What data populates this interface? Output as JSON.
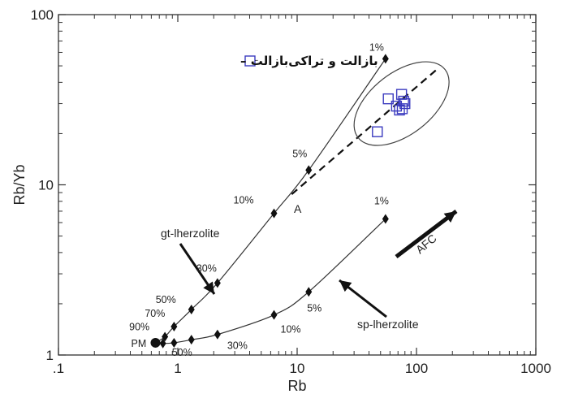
{
  "chart_data": {
    "type": "scatter",
    "xlabel": "Rb",
    "ylabel": "Rb/Yb",
    "xscale": "log",
    "yscale": "log",
    "xlim": [
      0.1,
      1000
    ],
    "ylim": [
      1,
      100
    ],
    "x_ticks": [
      0.1,
      1,
      10,
      100,
      1000
    ],
    "x_tick_labels": [
      ".1",
      "1",
      "10",
      "100",
      "1000"
    ],
    "y_ticks": [
      1,
      10,
      100
    ],
    "y_tick_labels": [
      "1",
      "10",
      "100"
    ],
    "legend": {
      "label": "بازالت و تراکی‌بازالت",
      "marker": "open-square",
      "color": "#3b3bbf",
      "placement": "top-left"
    },
    "pm_point": {
      "label": "PM",
      "x": 0.65,
      "y": 1.18
    },
    "series": [
      {
        "name": "gt-lherzolite",
        "marker": "diamond",
        "points": [
          {
            "x": 0.78,
            "y": 1.28,
            "label": "90%"
          },
          {
            "x": 0.93,
            "y": 1.47,
            "label": "70%"
          },
          {
            "x": 1.3,
            "y": 1.85,
            "label": "50%"
          },
          {
            "x": 2.15,
            "y": 2.65,
            "label": "30%"
          },
          {
            "x": 6.4,
            "y": 6.8,
            "label": "10%"
          },
          {
            "x": 12.5,
            "y": 12.2,
            "label": "5%"
          },
          {
            "x": 55,
            "y": 55,
            "label": "1%"
          }
        ]
      },
      {
        "name": "sp-lherzolite",
        "marker": "diamond",
        "points": [
          {
            "x": 0.75,
            "y": 1.17,
            "label": ""
          },
          {
            "x": 0.93,
            "y": 1.18,
            "label": ""
          },
          {
            "x": 1.3,
            "y": 1.23,
            "label": "50%"
          },
          {
            "x": 2.15,
            "y": 1.32,
            "label": "30%"
          },
          {
            "x": 6.4,
            "y": 1.72,
            "label": "10%"
          },
          {
            "x": 12.5,
            "y": 2.35,
            "label": "5%"
          },
          {
            "x": 55,
            "y": 6.3,
            "label": "1%"
          }
        ]
      },
      {
        "name": "بازالت و تراکی‌بازالت",
        "marker": "open-square",
        "points": [
          {
            "x": 47,
            "y": 20.5
          },
          {
            "x": 58,
            "y": 32
          },
          {
            "x": 68,
            "y": 29
          },
          {
            "x": 72,
            "y": 27.5
          },
          {
            "x": 75,
            "y": 34
          },
          {
            "x": 78,
            "y": 31
          },
          {
            "x": 80,
            "y": 30
          },
          {
            "x": 76,
            "y": 28
          }
        ]
      }
    ],
    "annotations": [
      {
        "text": "gt-lherzolite"
      },
      {
        "text": "sp-lherzolite"
      },
      {
        "text": "AFC"
      },
      {
        "text": "A"
      }
    ]
  }
}
